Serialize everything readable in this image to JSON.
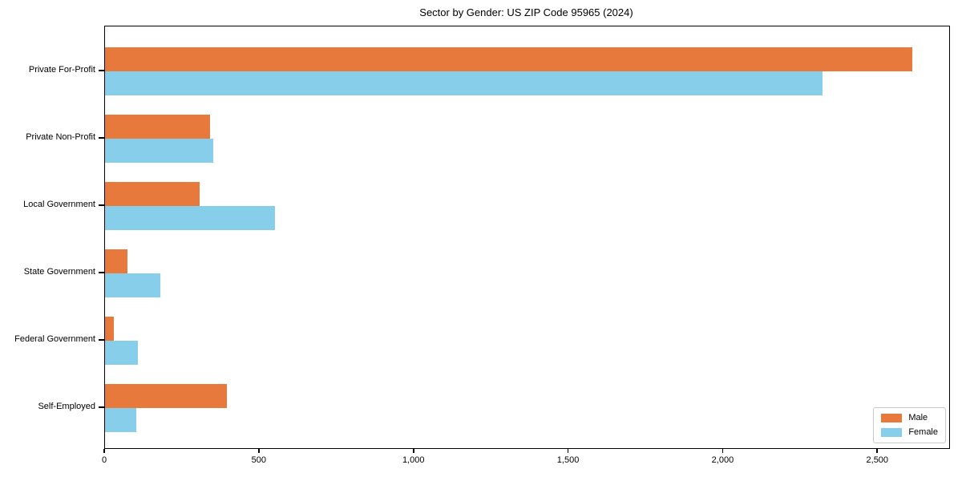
{
  "title": "Sector by Gender: US ZIP Code 95965 (2024)",
  "colors": {
    "male": "#E8793D",
    "female": "#87CEEB",
    "spine": "#000000",
    "text": "#000000",
    "legend_border": "#C9C9C9",
    "background": "#FFFFFF"
  },
  "legend": {
    "position": "lower right",
    "items": [
      {
        "label": "Male",
        "color": "#E8793D"
      },
      {
        "label": "Female",
        "color": "#87CEEB"
      }
    ]
  },
  "chart_data": {
    "type": "bar",
    "orientation": "horizontal",
    "title": "Sector by Gender: US ZIP Code 95965 (2024)",
    "categories": [
      "Private For-Profit",
      "Private Non-Profit",
      "Local Government",
      "State Government",
      "Federal Government",
      "Self-Employed"
    ],
    "series": [
      {
        "name": "Male",
        "color": "#E8793D",
        "values": [
          2610,
          340,
          305,
          72,
          28,
          395
        ]
      },
      {
        "name": "Female",
        "color": "#87CEEB",
        "values": [
          2320,
          350,
          550,
          180,
          105,
          100
        ]
      }
    ],
    "xlabel": "",
    "ylabel": "",
    "xlim": [
      0,
      2730
    ],
    "xticks": [
      0,
      500,
      1000,
      1500,
      2000,
      2500
    ],
    "xtick_labels": [
      "0",
      "500",
      "1,000",
      "1,500",
      "2,000",
      "2,500"
    ],
    "grid": false,
    "legend_position": "lower right"
  }
}
